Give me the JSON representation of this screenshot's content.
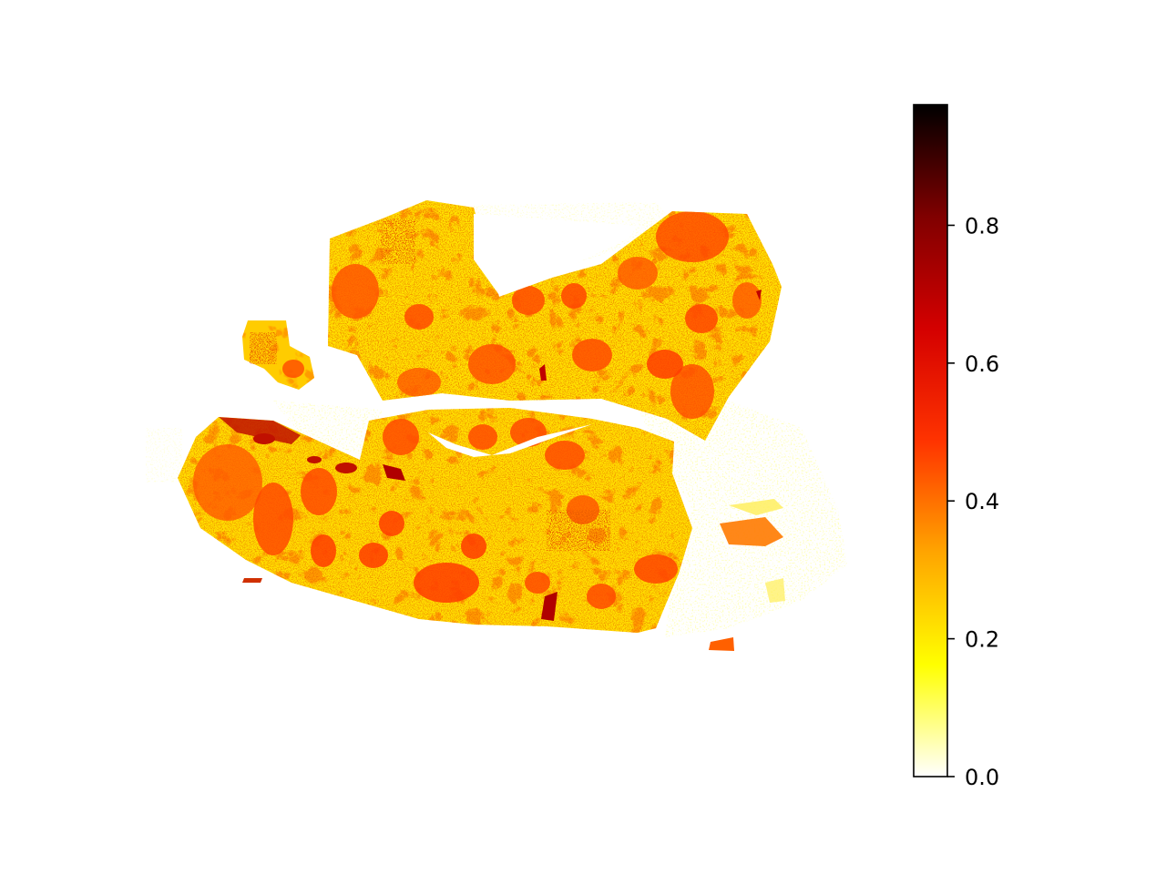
{
  "chart_data": {
    "type": "heatmap",
    "title": "",
    "xlabel": "",
    "ylabel": "",
    "axes_visible": false,
    "colormap": "hot_r",
    "colormap_stops": [
      "#ffffff",
      "#ffff00",
      "#ffa500",
      "#ff3300",
      "#d40000",
      "#800000",
      "#000000"
    ],
    "colorbar": {
      "vmin": 0.0,
      "vmax": 0.975,
      "ticks": [
        0.0,
        0.2,
        0.4,
        0.6,
        0.8
      ],
      "tick_labels": [
        "0.0",
        "0.2",
        "0.4",
        "0.6",
        "0.8"
      ],
      "position": "right"
    },
    "description_values": {
      "background": 0.0,
      "sparse_fringe": 0.15,
      "stroma": 0.25,
      "dense_regions": 0.5,
      "hotspots": 0.75
    }
  }
}
